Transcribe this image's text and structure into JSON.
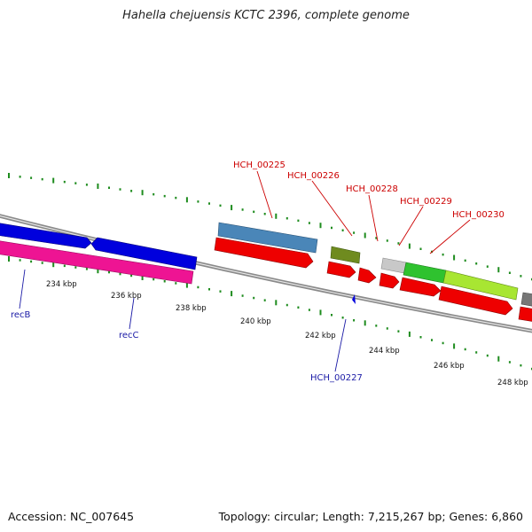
{
  "title": "Hahella chejuensis KCTC 2396, complete genome",
  "footer": {
    "accession": "Accession: NC_007645",
    "summary": "Topology: circular; Length: 7,215,267 bp; Genes: 6,860"
  },
  "ticks": [
    "234 kbp",
    "236 kbp",
    "238 kbp",
    "240 kbp",
    "242 kbp",
    "244 kbp",
    "246 kbp",
    "248 kbp"
  ],
  "gene_labels_top": [
    "HCH_00225",
    "HCH_00226",
    "HCH_00228",
    "HCH_00229",
    "HCH_00230"
  ],
  "gene_labels_bottom": [
    "recB",
    "recC",
    "HCH_00227"
  ],
  "colors": {
    "backbone": "#8a8a8a",
    "tick_green": "#1e8c1e",
    "cds_red": "#ee0000",
    "rec_blue": "#0000dd",
    "rec_pink": "#ee1493",
    "steelblue": "#4a86b8",
    "olive": "#6f8b1f",
    "lightgray": "#c8c8c8",
    "green": "#2fc22f",
    "lime": "#a8e632",
    "darkgray": "#777777",
    "label_red": "#cc0000",
    "label_blue": "#1a1aa6"
  }
}
